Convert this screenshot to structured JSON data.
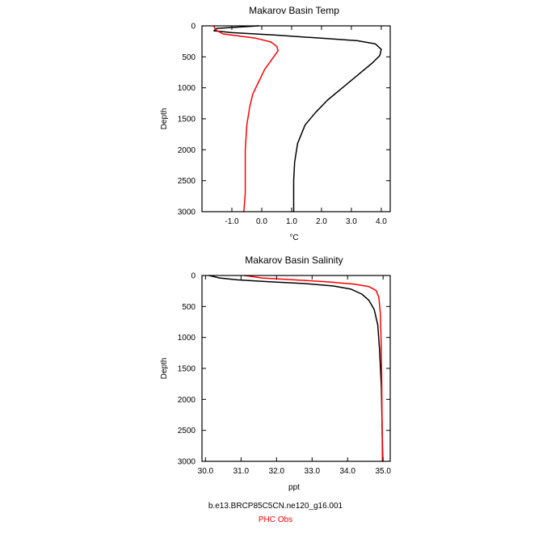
{
  "chart_data": [
    {
      "type": "line",
      "title": "Makarov Basin Temp",
      "xlabel": "°C",
      "ylabel": "Depth",
      "xlim": [
        -2.0,
        4.3
      ],
      "ylim": [
        3000,
        0
      ],
      "xticks": [
        {
          "value": -1.0,
          "label": "-1.0"
        },
        {
          "value": 0.0,
          "label": "0.0"
        },
        {
          "value": 1.0,
          "label": "1.0"
        },
        {
          "value": 2.0,
          "label": "2.0"
        },
        {
          "value": 3.0,
          "label": "3.0"
        },
        {
          "value": 4.0,
          "label": "4.0"
        }
      ],
      "yticks": [
        {
          "value": 0,
          "label": "0"
        },
        {
          "value": 500,
          "label": "500"
        },
        {
          "value": 1000,
          "label": "1000"
        },
        {
          "value": 1500,
          "label": "1500"
        },
        {
          "value": 2000,
          "label": "2000"
        },
        {
          "value": 2500,
          "label": "2500"
        },
        {
          "value": 3000,
          "label": "3000"
        }
      ],
      "series": [
        {
          "name": "b.e13.BRCP85C5CN.ne120_g16.001",
          "color": "#000000",
          "x": [
            -0.1,
            -1.5,
            -1.6,
            -1.0,
            0.5,
            2.0,
            3.2,
            3.8,
            4.0,
            3.95,
            3.7,
            3.2,
            2.7,
            2.2,
            1.8,
            1.45,
            1.2,
            1.1,
            1.07,
            1.07,
            1.07
          ],
          "y": [
            0,
            40,
            80,
            110,
            150,
            200,
            240,
            290,
            380,
            480,
            600,
            800,
            1000,
            1200,
            1400,
            1600,
            1900,
            2200,
            2500,
            2800,
            3000
          ]
        },
        {
          "name": "PHC Obs",
          "color": "#ff0000",
          "x": [
            -1.6,
            -1.55,
            -1.3,
            -0.2,
            0.3,
            0.5,
            0.55,
            0.4,
            0.1,
            -0.1,
            -0.3,
            -0.4,
            -0.5,
            -0.55,
            -0.55,
            -0.55,
            -0.6
          ],
          "y": [
            0,
            60,
            130,
            200,
            260,
            330,
            400,
            500,
            700,
            900,
            1100,
            1300,
            1600,
            2000,
            2400,
            2700,
            3000
          ]
        }
      ]
    },
    {
      "type": "line",
      "title": "Makarov Basin Salinity",
      "xlabel": "ppt",
      "ylabel": "Depth",
      "xlim": [
        29.9,
        35.2
      ],
      "ylim": [
        3000,
        0
      ],
      "xticks": [
        {
          "value": 30.0,
          "label": "30.0"
        },
        {
          "value": 31.0,
          "label": "31.0"
        },
        {
          "value": 32.0,
          "label": "32.0"
        },
        {
          "value": 33.0,
          "label": "33.0"
        },
        {
          "value": 34.0,
          "label": "34.0"
        },
        {
          "value": 35.0,
          "label": "35.0"
        }
      ],
      "yticks": [
        {
          "value": 0,
          "label": "0"
        },
        {
          "value": 500,
          "label": "500"
        },
        {
          "value": 1000,
          "label": "1000"
        },
        {
          "value": 1500,
          "label": "1500"
        },
        {
          "value": 2000,
          "label": "2000"
        },
        {
          "value": 2500,
          "label": "2500"
        },
        {
          "value": 3000,
          "label": "3000"
        }
      ],
      "series": [
        {
          "name": "b.e13.BRCP85C5CN.ne120_g16.001",
          "color": "#000000",
          "x": [
            30.1,
            30.4,
            30.9,
            31.8,
            32.8,
            33.6,
            34.1,
            34.4,
            34.6,
            34.75,
            34.85,
            34.9,
            34.95,
            34.97,
            34.99
          ],
          "y": [
            0,
            40,
            70,
            100,
            130,
            170,
            220,
            300,
            400,
            550,
            800,
            1200,
            1800,
            2400,
            3000
          ]
        },
        {
          "name": "PHC Obs",
          "color": "#ff0000",
          "x": [
            31.1,
            31.6,
            32.5,
            33.4,
            34.2,
            34.6,
            34.8,
            34.88,
            34.92,
            34.94,
            34.96,
            34.97,
            34.98
          ],
          "y": [
            0,
            40,
            70,
            100,
            140,
            180,
            240,
            350,
            600,
            1000,
            1600,
            2300,
            3000
          ]
        }
      ]
    }
  ],
  "legend": {
    "model": {
      "label": "b.e13.BRCP85C5CN.ne120_g16.001",
      "color": "#000000"
    },
    "obs": {
      "label": "PHC Obs",
      "color": "#ff0000"
    }
  }
}
